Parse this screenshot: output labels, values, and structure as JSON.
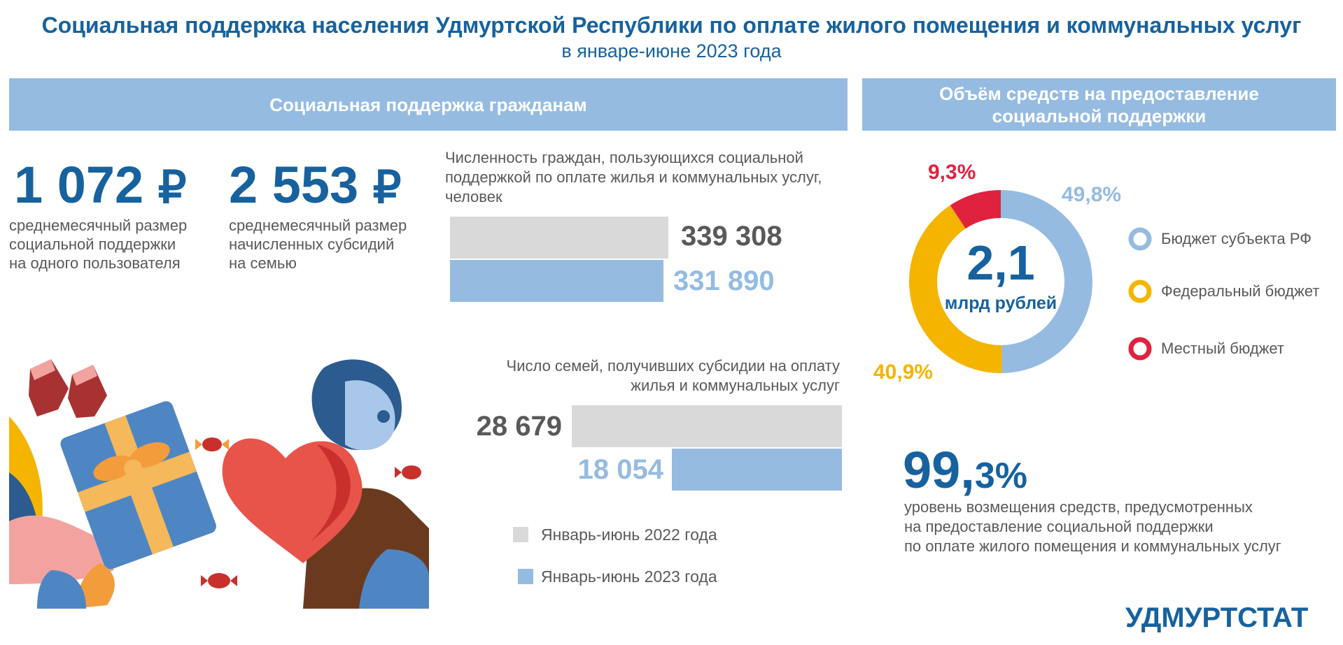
{
  "title": "Социальная поддержка населения Удмуртской Республики по оплате жилого помещения и коммунальных услуг",
  "subtitle": "в январе-июне 2023 года",
  "left_band": "Социальная поддержка гражданам",
  "right_band_line1": "Объём средств на предоставление",
  "right_band_line2": "социальной  поддержки",
  "stats": [
    {
      "value": "1 072",
      "currency": "₽",
      "line1": "среднемесячный размер",
      "line2": "социальной поддержки",
      "line3": "на одного пользователя"
    },
    {
      "value": "2 553",
      "currency": "₽",
      "line1": "среднемесячный размер",
      "line2": "начисленных субсидий",
      "line3": "на семью"
    }
  ],
  "chart_data": [
    {
      "type": "bar",
      "title_line1": "Численность граждан, пользующихся социальной",
      "title_line2": "поддержкой по оплате жилья и коммунальных услуг,",
      "title_line3": "человек",
      "series": [
        {
          "name": "Январь-июнь 2022 года",
          "values": [
            339308
          ],
          "label": "339 308"
        },
        {
          "name": "Январь-июнь 2023 года",
          "values": [
            331890
          ],
          "label": "331 890"
        }
      ]
    },
    {
      "type": "bar",
      "title_line1": "Число семей, получивших субсидии на оплату",
      "title_line2": "жилья и коммунальных услуг",
      "series": [
        {
          "name": "Январь-июнь 2022 года",
          "values": [
            28679
          ],
          "label": "28 679"
        },
        {
          "name": "Январь-июнь 2023 года",
          "values": [
            18054
          ],
          "label": "18 054"
        }
      ]
    },
    {
      "type": "pie",
      "center_value": "2,1",
      "center_unit": "млрд рублей",
      "slices": [
        {
          "name": "Бюджет субъекта РФ",
          "value": 49.8,
          "label": "49,8%",
          "color": "#95bbe1"
        },
        {
          "name": "Федеральный бюджет",
          "value": 40.9,
          "label": "40,9%",
          "color": "#f5b400"
        },
        {
          "name": "Местный бюджет",
          "value": 9.3,
          "label": "9,3%",
          "color": "#e0223f"
        }
      ]
    }
  ],
  "legend": [
    {
      "name": "Январь-июнь 2022 года",
      "color": "#d9d9d9"
    },
    {
      "name": "Январь-июнь 2023 года",
      "color": "#95bbe1"
    }
  ],
  "colors": {
    "accent": "#17629e",
    "light_blue": "#95bbe1",
    "grey": "#d9d9d9"
  },
  "reimbursement": {
    "int": "99,",
    "dec": "3%",
    "line1": "уровень возмещения средств, предусмотренных",
    "line2": "на предоставление социальной поддержки",
    "line3": "по оплате жилого помещения и коммунальных услуг"
  },
  "brand": "УДМУРТСТАТ"
}
